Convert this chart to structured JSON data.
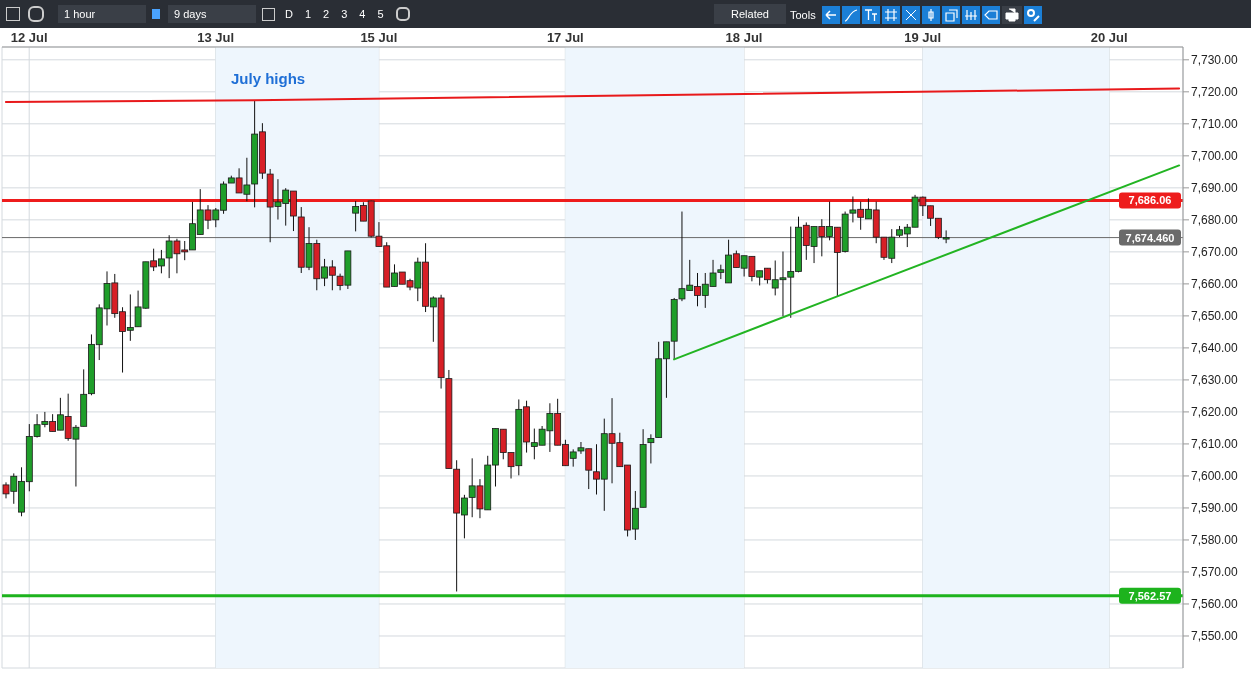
{
  "chart_data": {
    "type": "candlestick",
    "categories": [
      null,
      null,
      null,
      "12 Jul",
      null,
      null,
      null,
      null,
      null,
      null,
      null,
      null,
      null,
      null,
      null,
      null,
      null,
      null,
      null,
      null,
      null,
      null,
      null,
      null,
      null,
      null,
      null,
      "13 Jul",
      null,
      null,
      null,
      null,
      null,
      null,
      null,
      null,
      null,
      null,
      null,
      null,
      null,
      null,
      null,
      null,
      null,
      null,
      null,
      null,
      "15 Jul",
      null,
      null,
      null,
      null,
      null,
      null,
      null,
      null,
      null,
      null,
      null,
      null,
      null,
      null,
      null,
      null,
      null,
      null,
      null,
      null,
      null,
      null,
      null,
      "17 Jul",
      null,
      null,
      null,
      null,
      null,
      null,
      null,
      null,
      null,
      null,
      null,
      null,
      null,
      null,
      null,
      null,
      null,
      null,
      null,
      null,
      null,
      null,
      "18 Jul",
      null,
      null,
      null,
      null,
      null,
      null,
      null,
      null,
      null,
      null,
      null,
      null,
      null,
      null,
      null,
      null,
      null,
      null,
      null,
      null,
      null,
      null,
      "19 Jul",
      null,
      null,
      null,
      null,
      null,
      null,
      null,
      null,
      null,
      null,
      null,
      null,
      null,
      null,
      null,
      null,
      null,
      null,
      null,
      null,
      null,
      null,
      null,
      "20 Jul",
      null,
      null,
      null,
      null,
      null,
      null,
      null,
      null,
      null
    ],
    "ohlc": [
      [
        7597.2,
        7598.0,
        7593.0,
        7594.4
      ],
      [
        7595.2,
        7600.8,
        7591.3,
        7599.9
      ],
      [
        7588.7,
        7602.7,
        7587.4,
        7598.3
      ],
      [
        7598.2,
        7616.2,
        7595.2,
        7612.3
      ],
      [
        7612.3,
        7619.3,
        7612.0,
        7616.0
      ],
      [
        7616.1,
        7620.0,
        7615.2,
        7617.0
      ],
      [
        7617.0,
        7619.3,
        7613.9,
        7613.9
      ],
      [
        7614.3,
        7624.4,
        7614.3,
        7619.1
      ],
      [
        7618.6,
        7625.7,
        7611.0,
        7611.7
      ],
      [
        7611.5,
        7615.9,
        7596.7,
        7615.2
      ],
      [
        7615.5,
        7633.3,
        7615.5,
        7625.5
      ],
      [
        7625.7,
        7644.2,
        7625.2,
        7641.1
      ],
      [
        7641.0,
        7653.6,
        7636.2,
        7652.5
      ],
      [
        7652.2,
        7663.9,
        7647.0,
        7660.1
      ],
      [
        7660.3,
        7663.1,
        7649.4,
        7650.7
      ],
      [
        7651.3,
        7652.7,
        7632.3,
        7645.1
      ],
      [
        7645.5,
        7656.7,
        7642.2,
        7646.4
      ],
      [
        7646.6,
        7657.9,
        7646.6,
        7652.8
      ],
      [
        7652.4,
        7666.9,
        7652.2,
        7666.9
      ],
      [
        7667.2,
        7671.0,
        7664.0,
        7665.3
      ],
      [
        7665.6,
        7670.6,
        7663.3,
        7667.8
      ],
      [
        7668.1,
        7675.2,
        7661.8,
        7673.4
      ],
      [
        7673.4,
        7674.1,
        7663.3,
        7669.4
      ],
      [
        7670.6,
        7673.4,
        7667.4,
        7670.0
      ],
      [
        7670.6,
        7685.6,
        7670.6,
        7678.8
      ],
      [
        7675.4,
        7689.6,
        7675.4,
        7683.1
      ],
      [
        7683.1,
        7684.6,
        7677.1,
        7679.9
      ],
      [
        7680.0,
        7683.7,
        7677.7,
        7683.1
      ],
      [
        7683.0,
        7692.0,
        7681.9,
        7691.2
      ],
      [
        7691.5,
        7693.8,
        7691.5,
        7693.1
      ],
      [
        7693.1,
        7696.1,
        7688.4,
        7688.4
      ],
      [
        7688.0,
        7699.4,
        7685.8,
        7690.9
      ],
      [
        7691.2,
        7717.4,
        7683.9,
        7706.8
      ],
      [
        7707.5,
        7710.2,
        7692.8,
        7694.6
      ],
      [
        7694.3,
        7695.9,
        7673.0,
        7684.0
      ],
      [
        7684.2,
        7692.7,
        7680.1,
        7685.6
      ],
      [
        7685.1,
        7689.9,
        7678.2,
        7689.3
      ],
      [
        7689.0,
        7689.0,
        7676.5,
        7681.2
      ],
      [
        7680.9,
        7684.0,
        7663.4,
        7665.2
      ],
      [
        7665.2,
        7677.7,
        7664.3,
        7672.6
      ],
      [
        7672.6,
        7673.8,
        7658.0,
        7661.6
      ],
      [
        7661.8,
        7667.8,
        7659.3,
        7665.3
      ],
      [
        7665.3,
        7667.4,
        7658.0,
        7662.7
      ],
      [
        7662.4,
        7663.2,
        7658.0,
        7659.5
      ],
      [
        7659.6,
        7670.3,
        7658.4,
        7670.3
      ],
      [
        7682.1,
        7685.9,
        7676.4,
        7684.2
      ],
      [
        7684.5,
        7685.5,
        7679.6,
        7679.6
      ],
      [
        7685.9,
        7686.0,
        7674.5,
        7674.9
      ],
      [
        7674.9,
        7679.3,
        7671.7,
        7671.7
      ],
      [
        7671.9,
        7673.0,
        7659.0,
        7659.0
      ],
      [
        7659.2,
        7666.1,
        7659.2,
        7663.4
      ],
      [
        7663.7,
        7663.7,
        7659.9,
        7659.9
      ],
      [
        7661.0,
        7661.6,
        7658.0,
        7659.0
      ],
      [
        7658.7,
        7668.2,
        7654.6,
        7666.8
      ],
      [
        7666.8,
        7672.7,
        7651.2,
        7653.0
      ],
      [
        7652.8,
        7656.1,
        7641.9,
        7655.6
      ],
      [
        7655.6,
        7656.6,
        7627.3,
        7630.7
      ],
      [
        7630.4,
        7633.1,
        7602.3,
        7602.3
      ],
      [
        7602.1,
        7604.9,
        7563.9,
        7588.4
      ],
      [
        7587.8,
        7594.1,
        7580.5,
        7593.1
      ],
      [
        7593.3,
        7605.5,
        7587.1,
        7596.9
      ],
      [
        7596.9,
        7599.0,
        7586.8,
        7589.7
      ],
      [
        7589.4,
        7606.3,
        7589.4,
        7603.4
      ],
      [
        7603.4,
        7614.8,
        7596.7,
        7614.8
      ],
      [
        7614.6,
        7614.6,
        7605.2,
        7607.3
      ],
      [
        7607.3,
        7607.3,
        7599.2,
        7602.9
      ],
      [
        7603.2,
        7623.9,
        7600.2,
        7620.8
      ],
      [
        7621.6,
        7623.5,
        7607.3,
        7610.6
      ],
      [
        7609.2,
        7614.8,
        7605.2,
        7610.4
      ],
      [
        7609.6,
        7615.6,
        7609.6,
        7614.6
      ],
      [
        7614.1,
        7622.7,
        7607.5,
        7619.5
      ],
      [
        7619.5,
        7624.1,
        7609.6,
        7609.6
      ],
      [
        7609.8,
        7611.3,
        7603.2,
        7603.2
      ],
      [
        7605.5,
        7608.3,
        7602.9,
        7607.5
      ],
      [
        7607.8,
        7610.6,
        7606.9,
        7608.8
      ],
      [
        7608.5,
        7608.5,
        7595.9,
        7601.8
      ],
      [
        7601.3,
        7609.9,
        7594.2,
        7599.0
      ],
      [
        7599.0,
        7617.9,
        7589.1,
        7613.2
      ],
      [
        7613.2,
        7624.3,
        7597.7,
        7610.2
      ],
      [
        7610.4,
        7613.5,
        7602.9,
        7602.9
      ],
      [
        7603.4,
        7603.4,
        7581.1,
        7583.1
      ],
      [
        7583.4,
        7595.3,
        7580.0,
        7589.9
      ],
      [
        7590.2,
        7614.6,
        7590.2,
        7609.8
      ],
      [
        7610.4,
        7613.0,
        7603.9,
        7611.7
      ],
      [
        7612.0,
        7641.9,
        7612.0,
        7636.6
      ],
      [
        7636.6,
        7641.9,
        7624.4,
        7641.9
      ],
      [
        7642.1,
        7655.6,
        7636.4,
        7655.1
      ],
      [
        7655.3,
        7682.6,
        7654.6,
        7658.5
      ],
      [
        7657.9,
        7667.5,
        7657.9,
        7659.6
      ],
      [
        7659.2,
        7663.4,
        7653.0,
        7656.4
      ],
      [
        7656.4,
        7663.4,
        7652.5,
        7659.9
      ],
      [
        7659.2,
        7667.5,
        7659.2,
        7663.4
      ],
      [
        7663.6,
        7666.0,
        7661.5,
        7664.4
      ],
      [
        7660.3,
        7673.8,
        7660.3,
        7669.0
      ],
      [
        7669.4,
        7670.4,
        7665.1,
        7665.1
      ],
      [
        7664.9,
        7668.8,
        7662.3,
        7668.8
      ],
      [
        7668.6,
        7668.6,
        7660.8,
        7662.3
      ],
      [
        7662.1,
        7664.1,
        7659.5,
        7664.1
      ],
      [
        7664.9,
        7664.9,
        7660.1,
        7661.3
      ],
      [
        7658.7,
        7667.3,
        7656.4,
        7661.3
      ],
      [
        7661.3,
        7670.1,
        7649.9,
        7661.9
      ],
      [
        7662.1,
        7677.9,
        7649.4,
        7663.9
      ],
      [
        7663.9,
        7681.0,
        7663.6,
        7677.7
      ],
      [
        7678.3,
        7679.2,
        7667.5,
        7672.0
      ],
      [
        7671.7,
        7677.9,
        7666.5,
        7677.9
      ],
      [
        7677.9,
        7680.2,
        7668.6,
        7674.8
      ],
      [
        7674.8,
        7685.7,
        7673.6,
        7677.9
      ],
      [
        7677.7,
        7677.7,
        7656.1,
        7669.8
      ],
      [
        7670.1,
        7682.6,
        7669.8,
        7681.8
      ],
      [
        7682.1,
        7687.3,
        7679.2,
        7683.1
      ],
      [
        7683.3,
        7685.7,
        7676.9,
        7680.8
      ],
      [
        7680.3,
        7686.7,
        7680.3,
        7683.3
      ],
      [
        7683.1,
        7685.7,
        7672.7,
        7674.6
      ],
      [
        7674.6,
        7674.6,
        7667.5,
        7668.3
      ],
      [
        7668.0,
        7677.1,
        7666.5,
        7674.6
      ],
      [
        7675.2,
        7678.1,
        7674.6,
        7676.9
      ],
      [
        7675.6,
        7678.7,
        7671.5,
        7677.7
      ],
      [
        7677.7,
        7687.8,
        7677.7,
        7687.1
      ],
      [
        7687.1,
        7687.3,
        7681.2,
        7684.4
      ],
      [
        7684.4,
        7684.4,
        7678.1,
        7680.5
      ],
      [
        7680.5,
        7680.5,
        7674.0,
        7674.5
      ],
      [
        7674.0,
        7676.7,
        7672.7,
        7674.5
      ],
      null,
      null,
      null,
      null,
      null,
      null,
      null,
      null,
      null,
      null,
      null,
      null,
      null,
      null,
      null,
      null,
      null,
      null,
      null,
      null,
      null,
      null,
      null,
      null,
      null,
      null,
      null,
      null,
      null,
      null
    ],
    "series": [
      {
        "type": "line",
        "color": "#e8191b",
        "values": [
          7716.8,
          null,
          null,
          null,
          null,
          null,
          null,
          null,
          null,
          null,
          null,
          null,
          null,
          null,
          null,
          null,
          null,
          null,
          null,
          null,
          null,
          null,
          null,
          null,
          null,
          null,
          null,
          null,
          null,
          null,
          null,
          null,
          7717.4,
          null,
          null,
          null,
          null,
          null,
          null,
          null,
          null,
          null,
          null,
          null,
          null,
          null,
          null,
          null,
          null,
          null,
          null,
          null,
          null,
          null,
          null,
          null,
          null,
          null,
          null,
          null,
          null,
          null,
          null,
          null,
          null,
          null,
          null,
          null,
          null,
          null,
          null,
          null,
          null,
          null,
          null,
          null,
          null,
          null,
          null,
          null,
          null,
          null,
          null,
          null,
          null,
          null,
          null,
          null,
          null,
          null,
          null,
          null,
          null,
          null,
          null,
          null,
          null,
          null,
          null,
          null,
          null,
          null,
          null,
          null,
          null,
          null,
          null,
          null,
          null,
          null,
          null,
          null,
          null,
          null,
          null,
          null,
          null,
          null,
          null,
          null,
          null,
          null,
          null,
          null,
          null,
          null,
          null,
          null,
          null,
          null,
          null,
          null,
          null,
          null,
          null,
          null,
          null,
          null,
          null,
          null,
          null,
          null,
          null,
          null,
          null,
          null,
          null,
          null,
          null,
          null,
          null,
          7721.0
        ]
      },
      {
        "type": "line",
        "color": "#22b422",
        "values": [
          null,
          null,
          null,
          null,
          null,
          null,
          null,
          null,
          null,
          null,
          null,
          null,
          null,
          null,
          null,
          null,
          null,
          null,
          null,
          null,
          null,
          null,
          null,
          null,
          null,
          null,
          null,
          null,
          null,
          null,
          null,
          null,
          null,
          null,
          null,
          null,
          null,
          null,
          null,
          null,
          null,
          null,
          null,
          null,
          null,
          null,
          null,
          null,
          null,
          null,
          null,
          null,
          null,
          null,
          null,
          null,
          null,
          null,
          null,
          null,
          null,
          null,
          null,
          null,
          null,
          null,
          null,
          null,
          null,
          null,
          null,
          null,
          null,
          null,
          null,
          null,
          null,
          null,
          null,
          null,
          null,
          null,
          null,
          null,
          null,
          null,
          7636.4,
          null,
          null,
          null,
          null,
          null,
          null,
          null,
          null,
          null,
          null,
          null,
          null,
          null,
          null,
          null,
          null,
          null,
          null,
          null,
          null,
          7656.1,
          null,
          null,
          null,
          null,
          null,
          null,
          null,
          null,
          null,
          null,
          null,
          null,
          null,
          null,
          null,
          null,
          null,
          null,
          null,
          null,
          null,
          null,
          null,
          null,
          null,
          null,
          null,
          null,
          null,
          null,
          null,
          null,
          null,
          null,
          null,
          null,
          null,
          null,
          null,
          null,
          null,
          null,
          null,
          7697.0
        ]
      }
    ],
    "ylim": [
      7540,
      7734
    ],
    "yticks": [
      {
        "value": 7550,
        "label": "7,550.00"
      },
      {
        "value": 7560,
        "label": "7,560.00"
      },
      {
        "value": 7570,
        "label": "7,570.00"
      },
      {
        "value": 7580,
        "label": "7,580.00"
      },
      {
        "value": 7590,
        "label": "7,590.00"
      },
      {
        "value": 7600,
        "label": "7,600.00"
      },
      {
        "value": 7610,
        "label": "7,610.00"
      },
      {
        "value": 7620,
        "label": "7,620.00"
      },
      {
        "value": 7630,
        "label": "7,630.00"
      },
      {
        "value": 7640,
        "label": "7,640.00"
      },
      {
        "value": 7650,
        "label": "7,650.00"
      },
      {
        "value": 7660,
        "label": "7,660.00"
      },
      {
        "value": 7670,
        "label": "7,670.00"
      },
      {
        "value": 7680,
        "label": "7,680.00"
      },
      {
        "value": 7690,
        "label": "7,690.00"
      },
      {
        "value": 7700,
        "label": "7,700.00"
      },
      {
        "value": 7710,
        "label": "7,710.00"
      },
      {
        "value": 7720,
        "label": "7,720.00"
      },
      {
        "value": 7730,
        "label": "7,730.00"
      }
    ],
    "grid": true,
    "bands": [
      {
        "axis": "x",
        "from": "13 Jul",
        "to": "15 Jul",
        "color": "#eef6fd"
      },
      {
        "axis": "x",
        "from": "17 Jul",
        "to": "18 Jul",
        "color": "#eef6fd"
      },
      {
        "axis": "x",
        "from": "19 Jul",
        "to": "20 Jul",
        "color": "#eef6fd"
      }
    ],
    "ref_lines": [
      {
        "axis": "y",
        "value": 7686.06,
        "label": "7,686.06",
        "color": "#ee1c1c"
      },
      {
        "axis": "y",
        "value": 7674.46,
        "label": "7,674.460",
        "color": "#6a6a6a"
      },
      {
        "axis": "y",
        "value": 7562.57,
        "label": "7,562.57",
        "color": "#1db31d"
      }
    ],
    "annotations": [
      "July highs",
      "1 hour",
      "9 days",
      "D",
      "1",
      "2",
      "3",
      "4",
      "5",
      "Related",
      "Tools"
    ]
  }
}
